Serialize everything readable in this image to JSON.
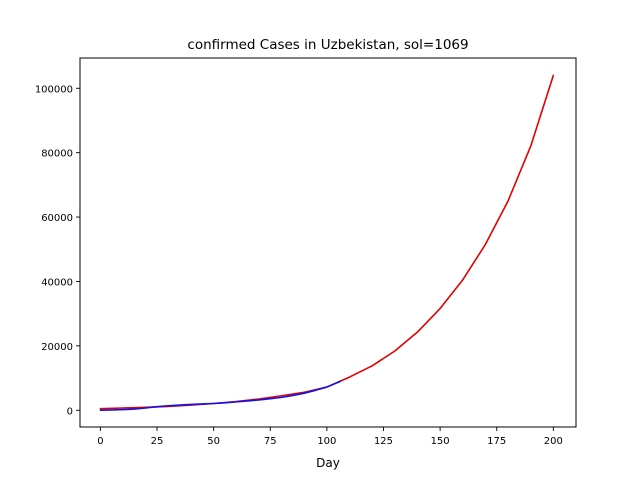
{
  "chart_data": {
    "type": "line",
    "title": "confirmed Cases in Uzbekistan, sol=1069",
    "xlabel": "Day",
    "ylabel": "",
    "xlim": [
      -9,
      210
    ],
    "ylim": [
      -5200,
      109400
    ],
    "x_ticks": [
      0,
      25,
      50,
      75,
      100,
      125,
      150,
      175,
      200
    ],
    "y_ticks": [
      0,
      20000,
      40000,
      60000,
      80000,
      100000
    ],
    "grid": false,
    "legend": "none",
    "series": [
      {
        "color": "#e00000",
        "x": [
          0,
          10,
          20,
          30,
          40,
          50,
          60,
          70,
          80,
          90,
          100,
          110,
          120,
          130,
          140,
          150,
          160,
          170,
          180,
          190,
          200
        ],
        "y": [
          500,
          700,
          900,
          1200,
          1600,
          2100,
          2700,
          3500,
          4500,
          5600,
          7200,
          10300,
          13800,
          18400,
          24300,
          31600,
          40500,
          51500,
          65000,
          82000,
          104000
        ]
      },
      {
        "color": "#1010ee",
        "x": [
          0,
          5,
          10,
          15,
          20,
          25,
          30,
          35,
          40,
          45,
          50,
          55,
          60,
          65,
          70,
          75,
          80,
          85,
          90,
          95,
          100,
          106
        ],
        "y": [
          0,
          100,
          200,
          350,
          700,
          1100,
          1400,
          1600,
          1800,
          1950,
          2100,
          2300,
          2600,
          2900,
          3200,
          3600,
          4000,
          4600,
          5300,
          6200,
          7200,
          9000
        ]
      }
    ]
  }
}
